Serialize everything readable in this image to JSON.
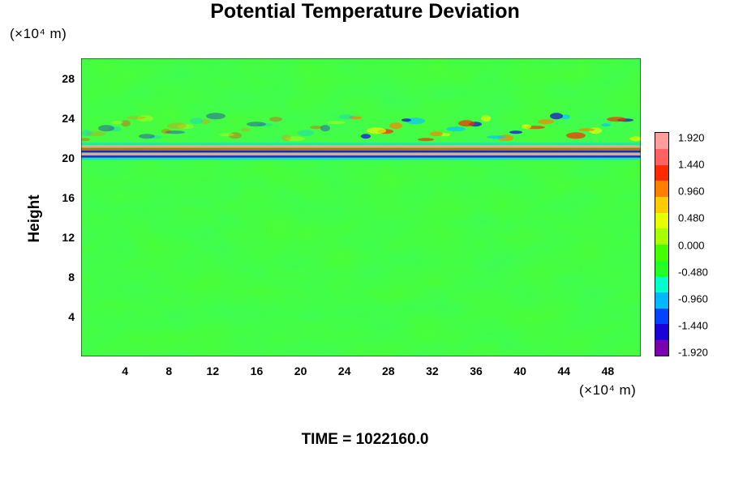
{
  "chart_data": {
    "type": "heatmap",
    "title": "Potential Temperature Deviation",
    "ylabel": "Height",
    "x_unit": "(×10⁴ m)",
    "y_unit": "(×10⁴ m)",
    "x_ticks": [
      "4",
      "8",
      "12",
      "16",
      "20",
      "24",
      "28",
      "32",
      "36",
      "40",
      "44",
      "48"
    ],
    "y_ticks": [
      "4",
      "8",
      "12",
      "16",
      "20",
      "24",
      "28"
    ],
    "xlim": [
      0,
      51
    ],
    "ylim": [
      0,
      30
    ],
    "colorbar": {
      "labels": [
        "1.920",
        "1.440",
        "0.960",
        "0.480",
        "0.000",
        "-0.480",
        "-0.960",
        "-1.440",
        "-1.920"
      ],
      "min": -1.92,
      "max": 1.92,
      "colors": [
        "#7a00b0",
        "#1c00d8",
        "#0044ff",
        "#00b8ff",
        "#00ffcc",
        "#22ff22",
        "#44ff00",
        "#a8ff00",
        "#e8ff00",
        "#ffcc00",
        "#ff8000",
        "#ff2a00",
        "#ff6060",
        "#ff9c9c"
      ]
    },
    "field_description": "Nearly uniform deviation near 0.000 (green) across domain; strong alternating positive/negative band near height 20-21 x10^4 m spanning full x range; weak wave ripples above 21 up to top.",
    "background_value": 0.0,
    "feature_band_height": [
      19.8,
      21.5
    ]
  },
  "footer": {
    "time_label": "TIME = 1022160.0"
  }
}
